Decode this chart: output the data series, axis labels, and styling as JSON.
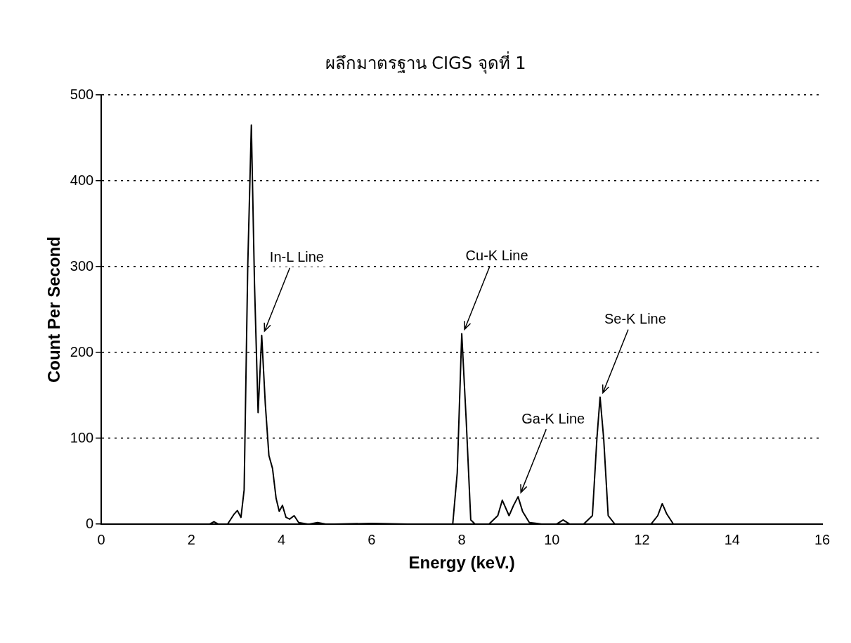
{
  "chart_data": {
    "type": "line",
    "title": "ผลึกมาตรฐาน CIGS จุดที่ 1",
    "xlabel": "Energy (keV.)",
    "ylabel": "Count Per Second",
    "xlim": [
      0,
      16
    ],
    "xticks": [
      0,
      2,
      4,
      6,
      8,
      10,
      12,
      14,
      16
    ],
    "ylim": [
      0,
      500
    ],
    "yticks": [
      0,
      100,
      200,
      300,
      400,
      500
    ],
    "grid": "y",
    "legend": false,
    "marker": "none",
    "line_style": "solid",
    "series": [
      {
        "color": "#000000",
        "x": [
          0,
          1,
          2,
          2.4,
          2.5,
          2.6,
          2.8,
          2.95,
          3.02,
          3.1,
          3.17,
          3.25,
          3.33,
          3.4,
          3.48,
          3.56,
          3.64,
          3.72,
          3.8,
          3.88,
          3.95,
          4.02,
          4.1,
          4.18,
          4.28,
          4.38,
          4.6,
          4.8,
          5,
          6,
          7,
          7.8,
          7.9,
          8.0,
          8.1,
          8.2,
          8.3,
          8.6,
          8.8,
          8.9,
          9.05,
          9.15,
          9.25,
          9.35,
          9.5,
          9.8,
          10.1,
          10.25,
          10.4,
          10.7,
          10.9,
          11.0,
          11.07,
          11.15,
          11.25,
          11.4,
          11.8,
          12.2,
          12.35,
          12.45,
          12.55,
          12.7,
          13,
          14,
          15,
          16
        ],
        "values": [
          0,
          0,
          0,
          0,
          3,
          0,
          0,
          12,
          16,
          8,
          40,
          300,
          465,
          280,
          130,
          220,
          140,
          80,
          65,
          30,
          15,
          22,
          8,
          6,
          10,
          2,
          0,
          2,
          0,
          1,
          0,
          0,
          60,
          222,
          120,
          5,
          0,
          0,
          10,
          28,
          10,
          22,
          32,
          15,
          2,
          0,
          0,
          5,
          0,
          0,
          10,
          100,
          148,
          100,
          10,
          0,
          0,
          0,
          10,
          24,
          12,
          0,
          0,
          0,
          0,
          0
        ]
      }
    ],
    "annotations": [
      {
        "text": "In-L Line",
        "x": 3.56,
        "y": 220
      },
      {
        "text": "Cu-K Line",
        "x": 8.0,
        "y": 222
      },
      {
        "text": "Ga-K Line",
        "x": 9.25,
        "y": 32
      },
      {
        "text": "Se-K Line",
        "x": 11.07,
        "y": 148
      }
    ]
  }
}
